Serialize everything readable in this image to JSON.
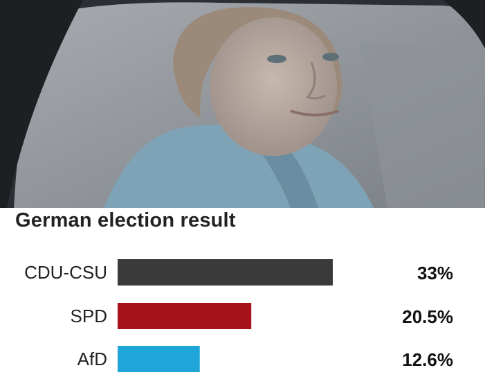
{
  "photo": {
    "description_icon": "photo-of-person-in-car-window"
  },
  "chart_data": {
    "type": "bar",
    "orientation": "horizontal",
    "title": "German election result",
    "categories": [
      "CDU-CSU",
      "SPD",
      "AfD"
    ],
    "values": [
      33,
      20.5,
      12.6
    ],
    "value_labels": [
      "33%",
      "20.5%",
      "12.6%"
    ],
    "colors": [
      "#3a3a3a",
      "#a7111b",
      "#1fa5d8"
    ],
    "xlim": [
      0,
      35
    ],
    "grid": false,
    "legend": "none"
  }
}
